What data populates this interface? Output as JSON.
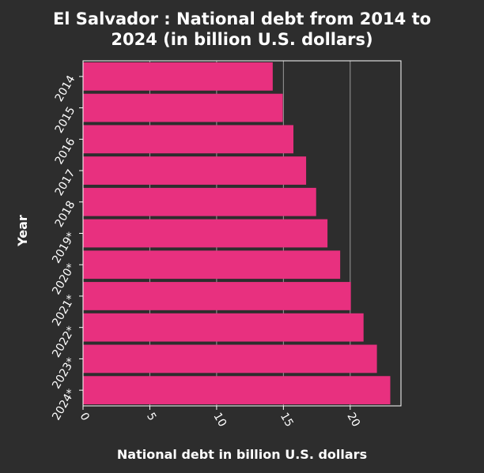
{
  "chart_data": {
    "type": "bar",
    "orientation": "horizontal",
    "title_line1": "El Salvador : National debt from 2014 to",
    "title_line2": "2024 (in billion U.S. dollars)",
    "xlabel": "National debt in billion U.S. dollars",
    "ylabel": "Year",
    "categories": [
      "2014",
      "2015",
      "2016",
      "2017",
      "2018",
      "2019*",
      "2020*",
      "2021*",
      "2022*",
      "2023*",
      "2024*"
    ],
    "values": [
      14.2,
      14.95,
      15.75,
      16.7,
      17.45,
      18.3,
      19.25,
      20.05,
      21.0,
      22.0,
      23.0
    ],
    "xticks": [
      0,
      5,
      10,
      15,
      20
    ],
    "xlim": [
      0,
      23.8
    ],
    "grid": "vertical",
    "colors": {
      "bar": "#e8307f",
      "background": "#2d2d2d",
      "grid": "#999999",
      "text": "#ffffff"
    }
  }
}
